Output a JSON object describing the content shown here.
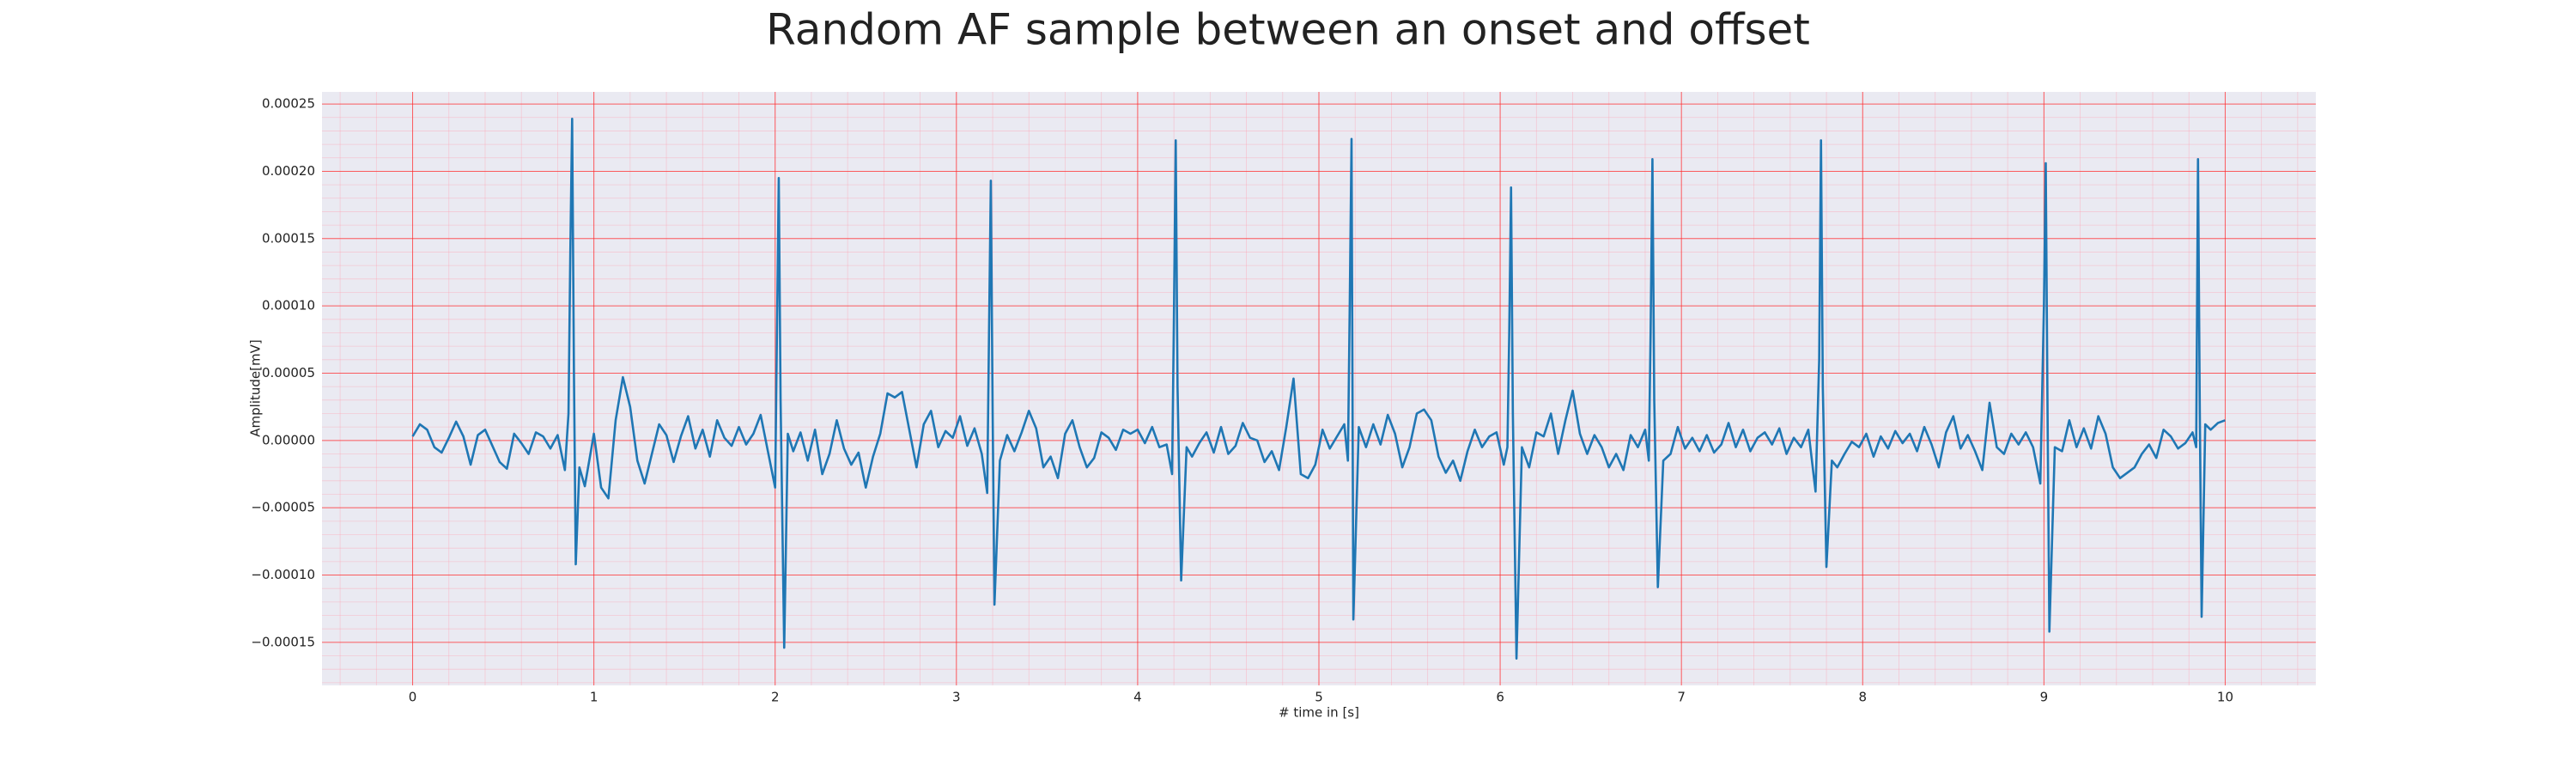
{
  "chart_data": {
    "type": "line",
    "title": "Random AF sample between an onset and offset",
    "xlabel": "# time in [s]",
    "ylabel": "Amplitude[mV]",
    "color": "#1f77b4",
    "grid": true,
    "minor_grid": true,
    "xlim": [
      -0.5,
      10.5
    ],
    "ylim": [
      -0.000182,
      0.000259
    ],
    "xticks": [
      0,
      1,
      2,
      3,
      4,
      5,
      6,
      7,
      8,
      9,
      10
    ],
    "yticks": [
      {
        "value": -0.00015,
        "label": "−0.00015"
      },
      {
        "value": -0.0001,
        "label": "−0.00010"
      },
      {
        "value": -5e-05,
        "label": "−0.00005"
      },
      {
        "value": 0,
        "label": "0.00000"
      },
      {
        "value": 5e-05,
        "label": "0.00005"
      },
      {
        "value": 0.0001,
        "label": "0.00010"
      },
      {
        "value": 0.00015,
        "label": "0.00015"
      },
      {
        "value": 0.0002,
        "label": "0.00020"
      },
      {
        "value": 0.00025,
        "label": "0.00025"
      }
    ],
    "x": [
      0,
      0.04,
      0.08,
      0.12,
      0.16,
      0.2,
      0.24,
      0.28,
      0.32,
      0.36,
      0.4,
      0.44,
      0.48,
      0.52,
      0.56,
      0.6,
      0.64,
      0.68,
      0.72,
      0.76,
      0.8,
      0.84,
      0.86,
      0.87,
      0.88,
      0.89,
      0.9,
      0.92,
      0.95,
      1.0,
      1.04,
      1.08,
      1.12,
      1.16,
      1.2,
      1.24,
      1.28,
      1.32,
      1.36,
      1.4,
      1.44,
      1.48,
      1.52,
      1.56,
      1.6,
      1.64,
      1.68,
      1.72,
      1.76,
      1.8,
      1.84,
      1.88,
      1.92,
      1.96,
      2.0,
      2.01,
      2.02,
      2.03,
      2.05,
      2.07,
      2.1,
      2.14,
      2.18,
      2.22,
      2.26,
      2.3,
      2.34,
      2.38,
      2.42,
      2.46,
      2.5,
      2.54,
      2.58,
      2.62,
      2.66,
      2.7,
      2.74,
      2.78,
      2.82,
      2.86,
      2.9,
      2.94,
      2.98,
      3.02,
      3.06,
      3.1,
      3.14,
      3.17,
      3.18,
      3.19,
      3.2,
      3.21,
      3.24,
      3.28,
      3.32,
      3.36,
      3.4,
      3.44,
      3.48,
      3.52,
      3.56,
      3.6,
      3.64,
      3.68,
      3.72,
      3.76,
      3.8,
      3.84,
      3.88,
      3.92,
      3.96,
      4.0,
      4.04,
      4.08,
      4.12,
      4.16,
      4.19,
      4.2,
      4.21,
      4.22,
      4.24,
      4.27,
      4.3,
      4.34,
      4.38,
      4.42,
      4.46,
      4.5,
      4.54,
      4.58,
      4.62,
      4.66,
      4.7,
      4.74,
      4.78,
      4.82,
      4.86,
      4.9,
      4.94,
      4.98,
      5.02,
      5.06,
      5.1,
      5.14,
      5.16,
      5.17,
      5.18,
      5.19,
      5.22,
      5.26,
      5.3,
      5.34,
      5.38,
      5.42,
      5.46,
      5.5,
      5.54,
      5.58,
      5.62,
      5.66,
      5.7,
      5.74,
      5.78,
      5.82,
      5.86,
      5.9,
      5.94,
      5.98,
      6.02,
      6.04,
      6.05,
      6.06,
      6.07,
      6.09,
      6.12,
      6.16,
      6.2,
      6.24,
      6.28,
      6.32,
      6.36,
      6.4,
      6.44,
      6.48,
      6.52,
      6.56,
      6.6,
      6.64,
      6.68,
      6.72,
      6.76,
      6.8,
      6.82,
      6.83,
      6.84,
      6.85,
      6.87,
      6.9,
      6.94,
      6.98,
      7.02,
      7.06,
      7.1,
      7.14,
      7.18,
      7.22,
      7.26,
      7.3,
      7.34,
      7.38,
      7.42,
      7.46,
      7.5,
      7.54,
      7.58,
      7.62,
      7.66,
      7.7,
      7.74,
      7.76,
      7.77,
      7.78,
      7.8,
      7.83,
      7.86,
      7.9,
      7.94,
      7.98,
      8.02,
      8.06,
      8.1,
      8.14,
      8.18,
      8.22,
      8.26,
      8.3,
      8.34,
      8.38,
      8.42,
      8.46,
      8.5,
      8.54,
      8.58,
      8.62,
      8.66,
      8.7,
      8.74,
      8.78,
      8.82,
      8.86,
      8.9,
      8.94,
      8.98,
      9.0,
      9.01,
      9.02,
      9.03,
      9.06,
      9.1,
      9.14,
      9.18,
      9.22,
      9.26,
      9.3,
      9.34,
      9.38,
      9.42,
      9.46,
      9.5,
      9.54,
      9.58,
      9.62,
      9.66,
      9.7,
      9.74,
      9.78,
      9.82,
      9.84,
      9.85,
      9.86,
      9.87,
      9.89,
      9.92,
      9.96,
      10.0
    ],
    "values": [
      3e-06,
      1.2e-05,
      8e-06,
      -5e-06,
      -9e-06,
      2e-06,
      1.4e-05,
      3e-06,
      -1.8e-05,
      4e-06,
      8e-06,
      -4e-06,
      -1.6e-05,
      -2.1e-05,
      5e-06,
      -2e-06,
      -1e-05,
      6e-06,
      3e-06,
      -6e-06,
      4e-06,
      -2.2e-05,
      2e-05,
      0.00014,
      0.000239,
      5e-05,
      -9.2e-05,
      -2e-05,
      -3.4e-05,
      5e-06,
      -3.5e-05,
      -4.3e-05,
      1.5e-05,
      4.7e-05,
      2.5e-05,
      -1.5e-05,
      -3.2e-05,
      -1e-05,
      1.2e-05,
      4e-06,
      -1.6e-05,
      3e-06,
      1.8e-05,
      -6e-06,
      8e-06,
      -1.2e-05,
      1.5e-05,
      2e-06,
      -4e-06,
      1e-05,
      -3e-06,
      5e-06,
      1.9e-05,
      -8e-06,
      -3.5e-05,
      8e-05,
      0.000195,
      3e-05,
      -0.000154,
      5e-06,
      -8e-06,
      6e-06,
      -1.5e-05,
      8e-06,
      -2.5e-05,
      -1e-05,
      1.5e-05,
      -6e-06,
      -1.8e-05,
      -9e-06,
      -3.5e-05,
      -1.2e-05,
      5e-06,
      3.5e-05,
      3.2e-05,
      3.6e-05,
      8e-06,
      -2e-05,
      1.2e-05,
      2.2e-05,
      -5e-06,
      7e-06,
      2e-06,
      1.8e-05,
      -4e-06,
      9e-06,
      -1e-05,
      -3.9e-05,
      8e-05,
      0.000193,
      2e-05,
      -0.000122,
      -1.5e-05,
      4e-06,
      -8e-06,
      6e-06,
      2.2e-05,
      9e-06,
      -2e-05,
      -1.2e-05,
      -2.8e-05,
      5e-06,
      1.5e-05,
      -5e-06,
      -2e-05,
      -1.3e-05,
      6e-06,
      2e-06,
      -7e-06,
      8e-06,
      5e-06,
      8e-06,
      -2e-06,
      1e-05,
      -5e-06,
      -3e-06,
      -2.5e-05,
      9e-05,
      0.000223,
      4e-05,
      -0.000104,
      -5e-06,
      -1.2e-05,
      -2e-06,
      6e-06,
      -9e-06,
      1e-05,
      -1e-05,
      -4e-06,
      1.3e-05,
      2e-06,
      0.0,
      -1.6e-05,
      -8e-06,
      -2.2e-05,
      1e-05,
      4.6e-05,
      -2.5e-05,
      -2.8e-05,
      -1.8e-05,
      8e-06,
      -6e-06,
      3e-06,
      1.2e-05,
      -1.5e-05,
      0.0001,
      0.000224,
      -0.000133,
      1e-05,
      -5e-06,
      1.2e-05,
      -3e-06,
      1.9e-05,
      5e-06,
      -2e-05,
      -5e-06,
      2e-05,
      2.3e-05,
      1.5e-05,
      -1.2e-05,
      -2.4e-05,
      -1.5e-05,
      -3e-05,
      -8e-06,
      8e-06,
      -5e-06,
      3e-06,
      6e-06,
      -1.8e-05,
      -5e-06,
      8e-05,
      0.000188,
      2e-05,
      -0.000162,
      -5e-06,
      -2e-05,
      6e-06,
      3e-06,
      2e-05,
      -1e-05,
      1.5e-05,
      3.7e-05,
      5e-06,
      -1e-05,
      4e-06,
      -5e-06,
      -2e-05,
      -1e-05,
      -2.2e-05,
      4e-06,
      -5e-06,
      8e-06,
      -1.5e-05,
      8e-05,
      0.000209,
      3e-05,
      -0.000109,
      -1.5e-05,
      -1e-05,
      1e-05,
      -6e-06,
      2e-06,
      -8e-06,
      4e-06,
      -9e-06,
      -3e-06,
      1.3e-05,
      -5e-06,
      8e-06,
      -8e-06,
      2e-06,
      6e-06,
      -3e-06,
      9e-06,
      -1e-05,
      2e-06,
      -5e-06,
      8e-06,
      -3.8e-05,
      6e-05,
      0.000223,
      4e-05,
      -9.4e-05,
      -1.5e-05,
      -2e-05,
      -1e-05,
      -1e-06,
      -5e-06,
      5e-06,
      -1.2e-05,
      3e-06,
      -6e-06,
      7e-06,
      -2e-06,
      5e-06,
      -8e-06,
      1e-05,
      -3e-06,
      -2e-05,
      6e-06,
      1.8e-05,
      -6e-06,
      4e-06,
      -8e-06,
      -2.2e-05,
      2.8e-05,
      -5e-06,
      -1e-05,
      5e-06,
      -3e-06,
      6e-06,
      -5e-06,
      -3.2e-05,
      0.0001,
      0.000206,
      2e-05,
      -0.000142,
      -5e-06,
      -8e-06,
      1.5e-05,
      -5e-06,
      9e-06,
      -6e-06,
      1.8e-05,
      5e-06,
      -2e-05,
      -2.8e-05,
      -2.4e-05,
      -2e-05,
      -1e-05,
      -3e-06,
      -1.3e-05,
      8e-06,
      3e-06,
      -6e-06,
      -2e-06,
      6e-06,
      -5e-06,
      0.000209,
      2e-05,
      -0.000131,
      1.2e-05,
      8e-06,
      1.3e-05,
      1.5e-05
    ]
  }
}
